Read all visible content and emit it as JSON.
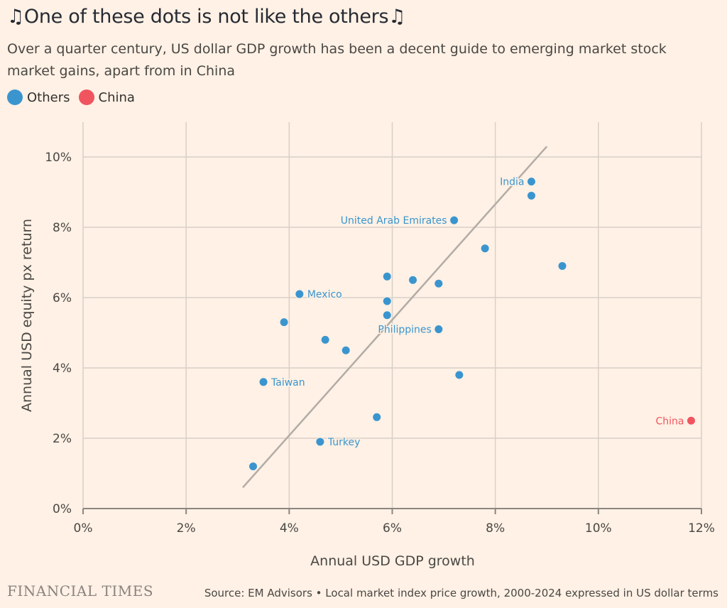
{
  "header": {
    "title": "One of these dots is not like the others",
    "title_icon_left": "music-note-icon",
    "title_icon_right": "music-note-icon",
    "subtitle": "Over a quarter century, US dollar GDP growth has been a decent guide to emerging market stock market gains, apart from in China"
  },
  "legend": {
    "items": [
      {
        "label": "Others",
        "color": "#3a95cf"
      },
      {
        "label": "China",
        "color": "#f0545f"
      }
    ]
  },
  "chart_data": {
    "type": "scatter",
    "xlabel": "Annual USD GDP growth",
    "ylabel": "Annual USD equity px return",
    "xlim": [
      0,
      12
    ],
    "ylim": [
      0,
      11
    ],
    "xticks": [
      0,
      2,
      4,
      6,
      8,
      10,
      12
    ],
    "yticks": [
      0,
      2,
      4,
      6,
      8,
      10
    ],
    "xtick_labels": [
      "0%",
      "2%",
      "4%",
      "6%",
      "8%",
      "10%",
      "12%"
    ],
    "ytick_labels": [
      "0%",
      "2%",
      "4%",
      "6%",
      "8%",
      "10%"
    ],
    "grid": true,
    "trendline": {
      "x": [
        3.1,
        9.0
      ],
      "y": [
        0.6,
        10.3
      ],
      "color": "#b3aca6"
    },
    "series": [
      {
        "name": "Others",
        "color": "#3a95cf",
        "points": [
          {
            "x": 8.7,
            "y": 9.3,
            "label": "India",
            "label_side": "left"
          },
          {
            "x": 8.7,
            "y": 8.9
          },
          {
            "x": 7.2,
            "y": 8.2,
            "label": "United Arab Emirates",
            "label_side": "left"
          },
          {
            "x": 7.8,
            "y": 7.4
          },
          {
            "x": 9.3,
            "y": 6.9
          },
          {
            "x": 5.9,
            "y": 6.6
          },
          {
            "x": 6.4,
            "y": 6.5
          },
          {
            "x": 6.9,
            "y": 6.4
          },
          {
            "x": 4.2,
            "y": 6.1,
            "label": "Mexico",
            "label_side": "right"
          },
          {
            "x": 5.9,
            "y": 5.9
          },
          {
            "x": 5.9,
            "y": 5.5
          },
          {
            "x": 3.9,
            "y": 5.3
          },
          {
            "x": 6.9,
            "y": 5.1,
            "label": "Philippines",
            "label_side": "left"
          },
          {
            "x": 4.7,
            "y": 4.8
          },
          {
            "x": 5.1,
            "y": 4.5
          },
          {
            "x": 7.3,
            "y": 3.8
          },
          {
            "x": 3.5,
            "y": 3.6,
            "label": "Taiwan",
            "label_side": "right"
          },
          {
            "x": 5.7,
            "y": 2.6
          },
          {
            "x": 4.6,
            "y": 1.9,
            "label": "Turkey",
            "label_side": "right"
          },
          {
            "x": 3.3,
            "y": 1.2
          }
        ]
      },
      {
        "name": "China",
        "color": "#f0545f",
        "points": [
          {
            "x": 11.8,
            "y": 2.5,
            "label": "China",
            "label_side": "left"
          }
        ]
      }
    ]
  },
  "footer": {
    "brand": "FINANCIAL TIMES",
    "source": "Source: EM Advisors • Local market index price growth, 2000-2024 expressed in US dollar terms"
  }
}
